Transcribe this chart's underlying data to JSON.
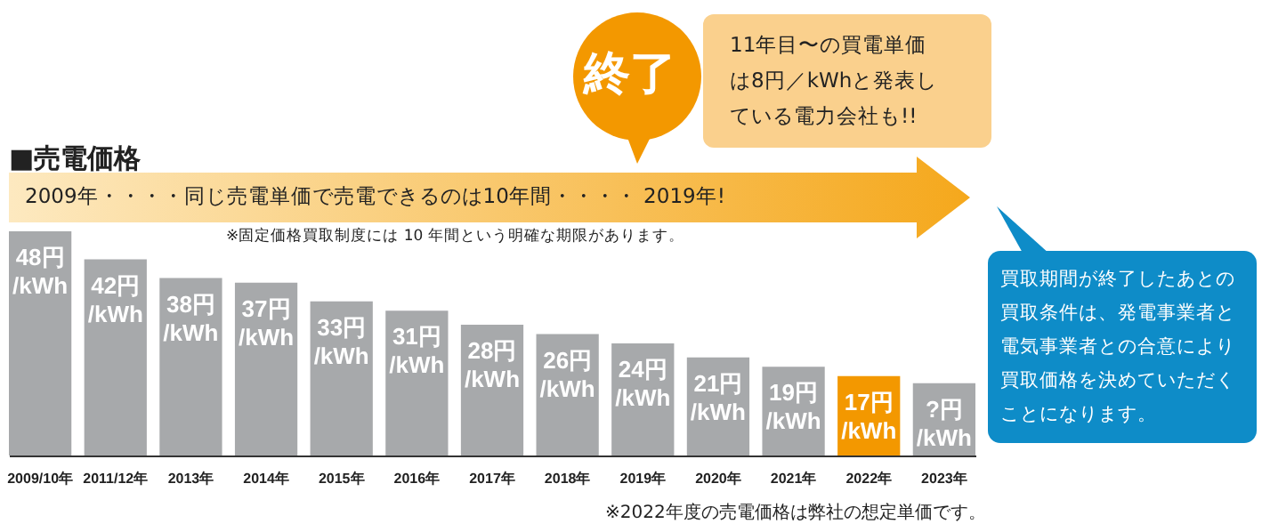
{
  "chart_data": {
    "type": "bar",
    "title": "■売電価格",
    "categories": [
      "2009/10年",
      "2011/12年",
      "2013年",
      "2014年",
      "2015年",
      "2016年",
      "2017年",
      "2018年",
      "2019年",
      "2020年",
      "2021年",
      "2022年",
      "2023年"
    ],
    "values": [
      48,
      42,
      38,
      37,
      33,
      31,
      28,
      26,
      24,
      21,
      19,
      17,
      15.5
    ],
    "value_labels": [
      "48円/kWh",
      "42円/kWh",
      "38円/kWh",
      "37円/kWh",
      "33円/kWh",
      "31円/kWh",
      "28円/kWh",
      "26円/kWh",
      "24円/kWh",
      "21円/kWh",
      "19円/kWh",
      "17円/kWh",
      "?円/kWh"
    ],
    "colors": [
      "#a7a9ab",
      "#a7a9ab",
      "#a7a9ab",
      "#a7a9ab",
      "#a7a9ab",
      "#a7a9ab",
      "#a7a9ab",
      "#a7a9ab",
      "#a7a9ab",
      "#a7a9ab",
      "#a7a9ab",
      "#f39800",
      "#a7a9ab"
    ],
    "annotations": [
      "2009年・・・・同じ売電単価で売電できるのは10年間・・・・ 2019年!",
      "※固定価格買取制度には 10 年間という明確な期限があります。",
      "終了",
      "11年目〜の買電単価は8円／kWhと発表している電力会社も!!",
      "買取期間が終了したあとの買取条件は、発電事業者と電気事業者との合意により買取価格を決めていただくことになります。",
      "※2022年度の売電価格は弊社の想定単価です。"
    ]
  }
}
